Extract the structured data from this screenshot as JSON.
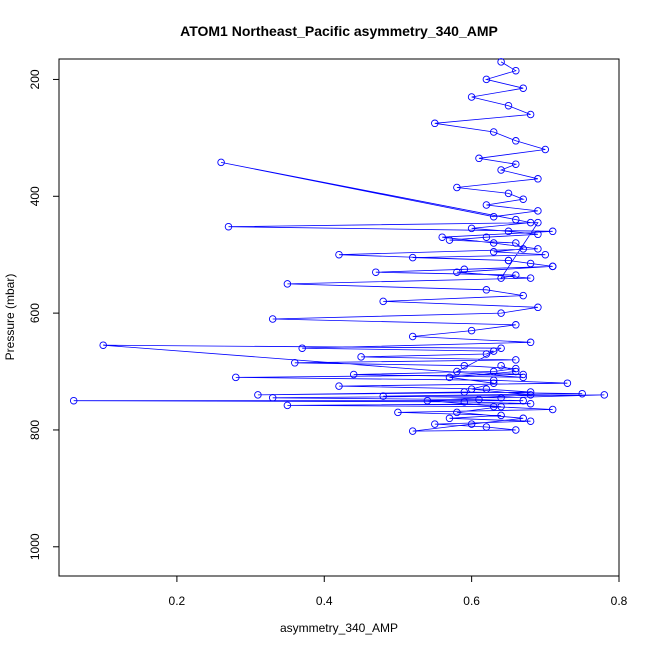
{
  "chart_data": {
    "type": "scatter",
    "title": "ATOM1 Northeast_Pacific asymmetry_340_AMP",
    "xlabel": "asymmetry_340_AMP",
    "ylabel": "Pressure (mbar)",
    "xlim": [
      0.04,
      0.8
    ],
    "ylim": [
      1050,
      165
    ],
    "y_reversed": true,
    "x_ticks": [
      0.2,
      0.4,
      0.6,
      0.8
    ],
    "y_ticks": [
      200,
      400,
      600,
      800,
      1000
    ],
    "x_tick_labels": [
      "0.2",
      "0.4",
      "0.6",
      "0.8"
    ],
    "y_tick_labels": [
      "200",
      "400",
      "600",
      "800",
      "1000"
    ],
    "grid": false,
    "legend": "none",
    "series_color": "#0000ff",
    "marker": "open-circle",
    "connected": true,
    "series": [
      {
        "x": [
          0.64,
          0.66,
          0.62,
          0.67,
          0.6,
          0.65,
          0.68,
          0.55,
          0.63,
          0.66,
          0.7,
          0.61,
          0.66,
          0.64,
          0.69,
          0.58,
          0.65,
          0.67,
          0.62,
          0.69,
          0.63,
          0.26,
          0.66,
          0.68,
          0.6,
          0.65,
          0.69,
          0.62,
          0.57,
          0.66,
          0.67,
          0.63,
          0.7,
          0.52,
          0.65,
          0.68,
          0.71,
          0.59,
          0.47,
          0.66,
          0.64,
          0.69,
          0.27,
          0.71,
          0.56,
          0.63,
          0.69,
          0.42,
          0.65,
          0.71,
          0.58,
          0.68,
          0.35,
          0.62,
          0.67,
          0.48,
          0.69,
          0.64,
          0.33,
          0.66,
          0.6,
          0.52,
          0.68,
          0.37,
          0.63,
          0.62,
          0.45,
          0.66,
          0.36,
          0.59,
          0.66,
          0.63,
          0.44,
          0.67,
          0.1,
          0.64,
          0.58,
          0.67,
          0.28,
          0.63,
          0.73,
          0.42,
          0.62,
          0.68,
          0.31,
          0.59,
          0.75,
          0.48,
          0.64,
          0.78,
          0.33,
          0.61,
          0.67,
          0.06,
          0.59,
          0.68,
          0.35,
          0.63,
          0.71,
          0.5,
          0.64,
          0.57,
          0.68,
          0.55,
          0.62,
          0.66,
          0.52,
          0.6,
          0.67,
          0.58,
          0.64,
          0.54,
          0.68,
          0.6,
          0.63,
          0.57,
          0.66,
          0.64
        ],
        "y": [
          170,
          185,
          200,
          215,
          230,
          245,
          260,
          275,
          290,
          305,
          320,
          335,
          345,
          355,
          370,
          385,
          395,
          405,
          415,
          425,
          435,
          342,
          440,
          445,
          455,
          460,
          465,
          470,
          475,
          480,
          490,
          495,
          500,
          505,
          510,
          515,
          520,
          525,
          530,
          535,
          540,
          445,
          452,
          460,
          470,
          480,
          490,
          500,
          510,
          520,
          530,
          540,
          550,
          560,
          570,
          580,
          590,
          600,
          610,
          620,
          630,
          640,
          650,
          660,
          665,
          670,
          675,
          680,
          685,
          690,
          695,
          700,
          705,
          710,
          655,
          660,
          700,
          705,
          710,
          715,
          720,
          725,
          730,
          735,
          740,
          735,
          738,
          742,
          745,
          740,
          745,
          748,
          750,
          750,
          752,
          755,
          758,
          760,
          765,
          770,
          775,
          780,
          785,
          790,
          795,
          800,
          802,
          790,
          780,
          770,
          760,
          750,
          740,
          730,
          720,
          710,
          700,
          690
        ]
      }
    ]
  }
}
